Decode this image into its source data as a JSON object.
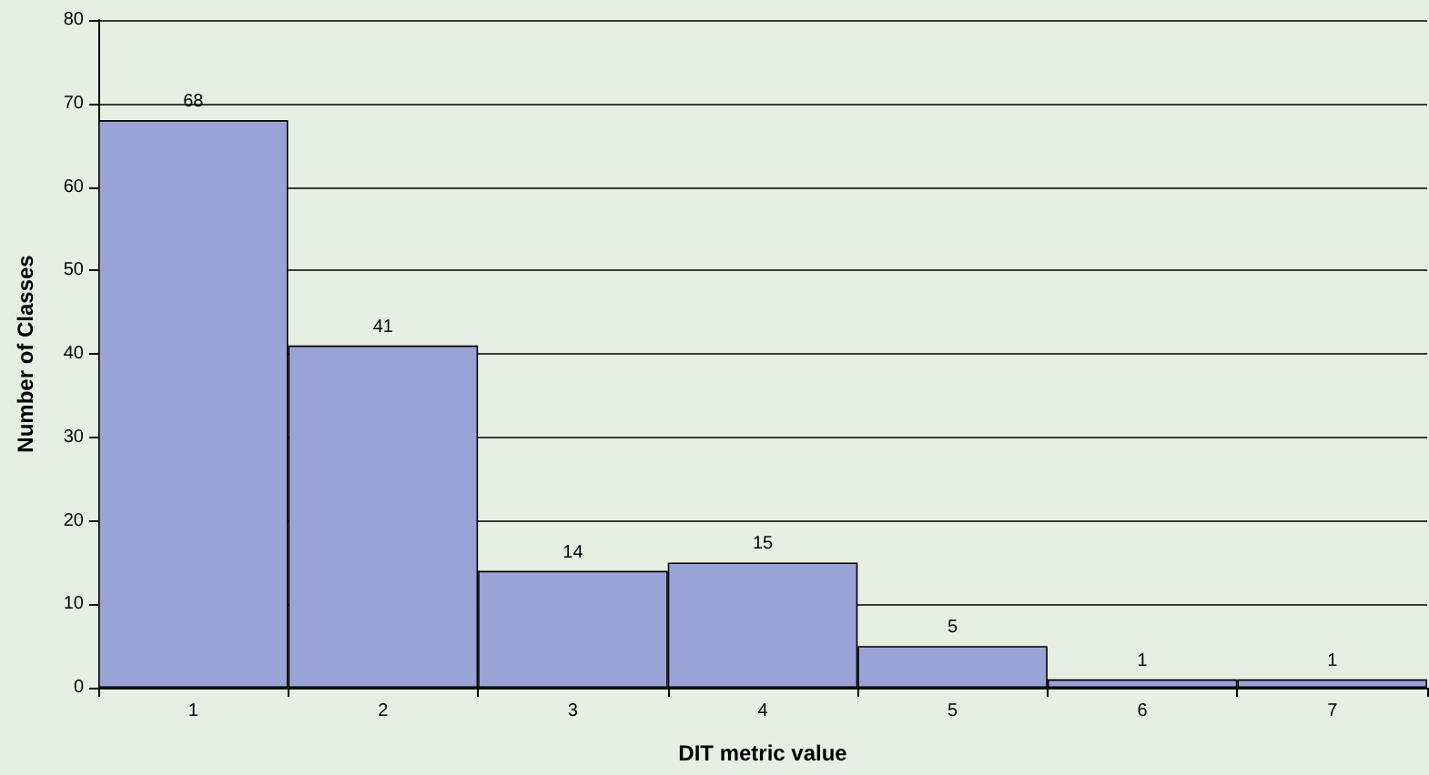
{
  "chart_data": {
    "type": "bar",
    "xlabel": "DIT metric value",
    "ylabel": "Number of Classes",
    "categories": [
      "1",
      "2",
      "3",
      "4",
      "5",
      "6",
      "7"
    ],
    "values": [
      68,
      41,
      14,
      15,
      5,
      1,
      1
    ],
    "color": "#99a3d5",
    "ylim": [
      0,
      80
    ],
    "yticks": [
      0,
      10,
      20,
      30,
      40,
      50,
      60,
      70,
      80
    ],
    "grid": "y",
    "data_labels": true
  }
}
